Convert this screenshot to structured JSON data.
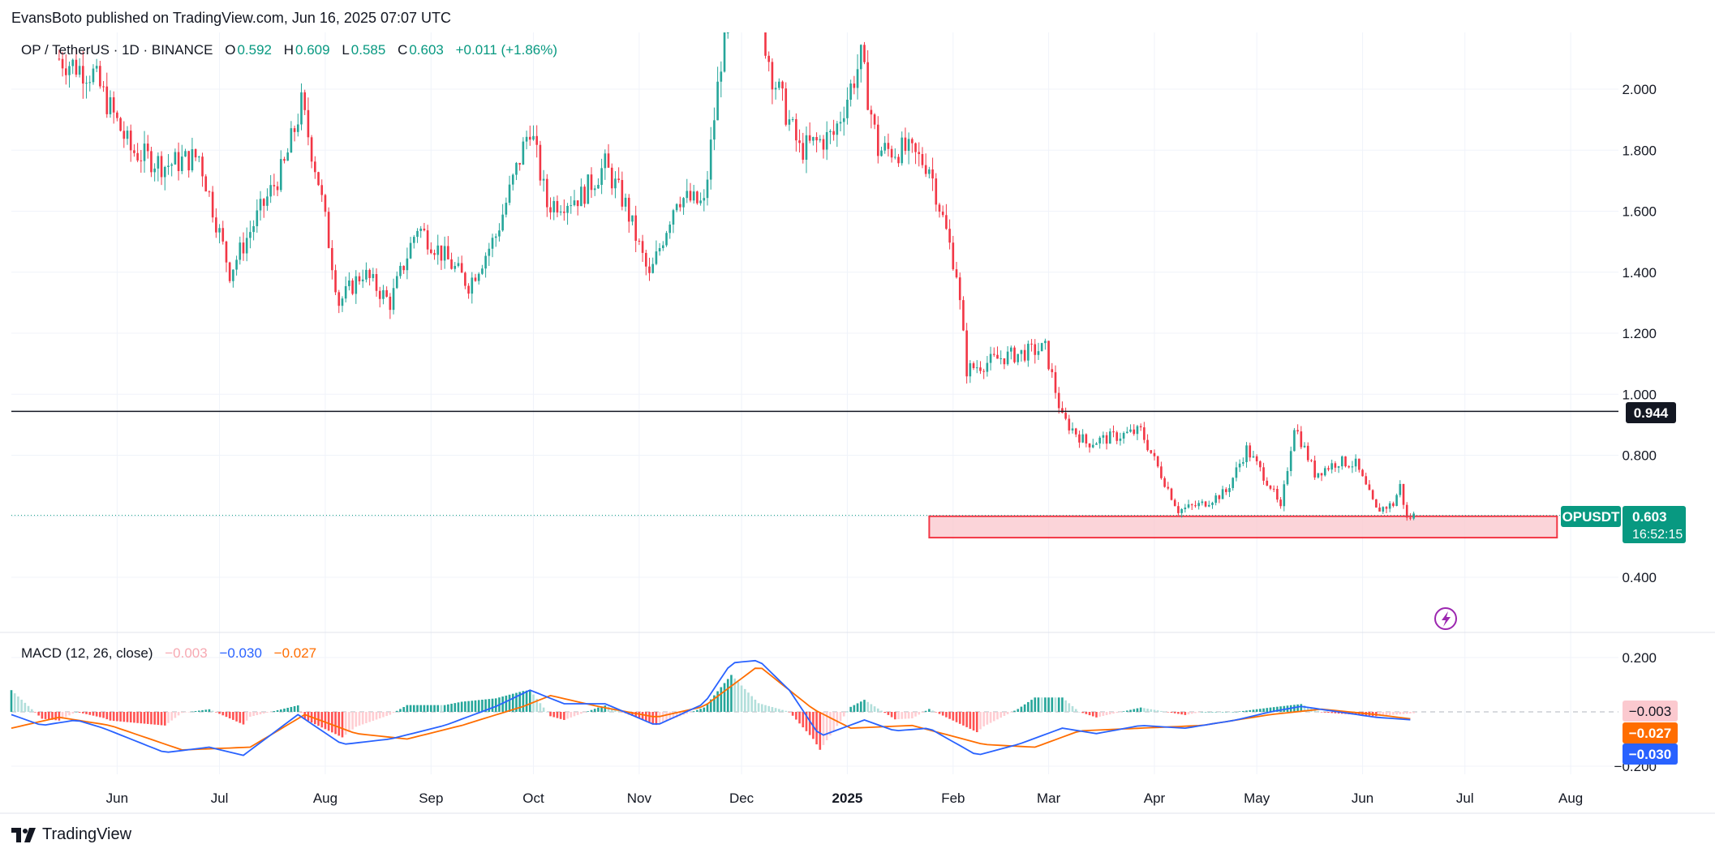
{
  "header": {
    "published": "EvansBoto published on TradingView.com, Jun 16, 2025 07:07 UTC"
  },
  "legend": {
    "symbol": "OP / TetherUS · 1D · BINANCE",
    "o_label": "O",
    "o_value": "0.592",
    "h_label": "H",
    "h_value": "0.609",
    "l_label": "L",
    "l_value": "0.585",
    "c_label": "C",
    "c_value": "0.603",
    "change": "+0.011 (+1.86%)"
  },
  "macd_legend": {
    "title": "MACD (12, 26, close)",
    "hist": "−0.003",
    "macd": "−0.030",
    "signal": "−0.027"
  },
  "price_labels": {
    "level": "0.944",
    "ticker": "OPUSDT",
    "last": "0.603",
    "countdown": "16:52:15"
  },
  "macd_labels": {
    "hist": "−0.003",
    "signal": "−0.027",
    "macd": "−0.030"
  },
  "footer": {
    "brand": "TradingView"
  },
  "colors": {
    "up": "#26a69a",
    "down": "#f23645",
    "macd": "#2962ff",
    "signal": "#ff6d00",
    "zone_fill": "#f9c6cc",
    "zone_border": "#f23645",
    "level_line": "#131722"
  },
  "chart_data": [
    {
      "type": "candlestick",
      "symbol": "OPUSDT",
      "interval": "1D",
      "x_range": [
        "2024-05-01",
        "2025-08-15"
      ],
      "y_range": [
        0.3,
        2.2
      ],
      "y_ticks": [
        "2.000",
        "1.800",
        "1.600",
        "1.400",
        "1.200",
        "1.000",
        "0.800",
        "0.400"
      ],
      "x_ticks": [
        "Jun",
        "Jul",
        "Aug",
        "Sep",
        "Oct",
        "Nov",
        "Dec",
        "2025",
        "Feb",
        "Mar",
        "Apr",
        "May",
        "Jun",
        "Jul",
        "Aug"
      ],
      "approx_close_path": [
        {
          "date": "2024-05-15",
          "close": 2.1
        },
        {
          "date": "2024-05-25",
          "close": 2.05
        },
        {
          "date": "2024-06-05",
          "close": 1.8
        },
        {
          "date": "2024-06-15",
          "close": 1.75
        },
        {
          "date": "2024-06-25",
          "close": 1.78
        },
        {
          "date": "2024-07-04",
          "close": 1.4
        },
        {
          "date": "2024-07-12",
          "close": 1.58
        },
        {
          "date": "2024-07-20",
          "close": 1.75
        },
        {
          "date": "2024-07-25",
          "close": 1.95
        },
        {
          "date": "2024-07-30",
          "close": 1.7
        },
        {
          "date": "2024-08-05",
          "close": 1.3
        },
        {
          "date": "2024-08-12",
          "close": 1.4
        },
        {
          "date": "2024-08-20",
          "close": 1.3
        },
        {
          "date": "2024-08-28",
          "close": 1.55
        },
        {
          "date": "2024-09-05",
          "close": 1.45
        },
        {
          "date": "2024-09-12",
          "close": 1.36
        },
        {
          "date": "2024-09-20",
          "close": 1.52
        },
        {
          "date": "2024-09-30",
          "close": 1.88
        },
        {
          "date": "2024-10-05",
          "close": 1.62
        },
        {
          "date": "2024-10-15",
          "close": 1.65
        },
        {
          "date": "2024-10-22",
          "close": 1.75
        },
        {
          "date": "2024-10-28",
          "close": 1.62
        },
        {
          "date": "2024-11-04",
          "close": 1.38
        },
        {
          "date": "2024-11-12",
          "close": 1.65
        },
        {
          "date": "2024-11-20",
          "close": 1.62
        },
        {
          "date": "2024-11-25",
          "close": 2.1
        },
        {
          "date": "2024-12-02",
          "close": 2.45
        },
        {
          "date": "2024-12-10",
          "close": 2.05
        },
        {
          "date": "2024-12-18",
          "close": 1.8
        },
        {
          "date": "2024-12-28",
          "close": 1.85
        },
        {
          "date": "2025-01-05",
          "close": 2.1
        },
        {
          "date": "2025-01-10",
          "close": 1.8
        },
        {
          "date": "2025-01-18",
          "close": 1.8
        },
        {
          "date": "2025-01-25",
          "close": 1.75
        },
        {
          "date": "2025-02-02",
          "close": 1.4
        },
        {
          "date": "2025-02-05",
          "close": 1.08
        },
        {
          "date": "2025-02-15",
          "close": 1.12
        },
        {
          "date": "2025-02-28",
          "close": 1.15
        },
        {
          "date": "2025-03-05",
          "close": 0.92
        },
        {
          "date": "2025-03-12",
          "close": 0.84
        },
        {
          "date": "2025-03-20",
          "close": 0.86
        },
        {
          "date": "2025-03-28",
          "close": 0.88
        },
        {
          "date": "2025-04-02",
          "close": 0.76
        },
        {
          "date": "2025-04-08",
          "close": 0.62
        },
        {
          "date": "2025-04-15",
          "close": 0.64
        },
        {
          "date": "2025-04-22",
          "close": 0.68
        },
        {
          "date": "2025-04-28",
          "close": 0.82
        },
        {
          "date": "2025-05-05",
          "close": 0.7
        },
        {
          "date": "2025-05-08",
          "close": 0.62
        },
        {
          "date": "2025-05-12",
          "close": 0.9
        },
        {
          "date": "2025-05-18",
          "close": 0.74
        },
        {
          "date": "2025-05-25",
          "close": 0.78
        },
        {
          "date": "2025-05-30",
          "close": 0.77
        },
        {
          "date": "2025-06-05",
          "close": 0.62
        },
        {
          "date": "2025-06-10",
          "close": 0.64
        },
        {
          "date": "2025-06-12",
          "close": 0.7
        },
        {
          "date": "2025-06-14",
          "close": 0.59
        },
        {
          "date": "2025-06-16",
          "close": 0.603
        }
      ],
      "annotations": {
        "horizontal_level": 0.944,
        "support_zone": {
          "from": "2025-01-25",
          "to": "2025-07-28",
          "low": 0.53,
          "high": 0.6
        },
        "last_price": 0.603
      },
      "grid": true
    },
    {
      "type": "line",
      "title": "MACD (12, 26, close)",
      "y_range": [
        -0.23,
        0.23
      ],
      "y_ticks": [
        "0.200",
        "−0.200"
      ],
      "series": [
        {
          "name": "MACD",
          "points": [
            {
              "date": "2024-05-01",
              "value": -0.01
            },
            {
              "date": "2024-05-10",
              "value": -0.05
            },
            {
              "date": "2024-05-20",
              "value": -0.03
            },
            {
              "date": "2024-05-28",
              "value": -0.06
            },
            {
              "date": "2024-06-15",
              "value": -0.15
            },
            {
              "date": "2024-06-28",
              "value": -0.13
            },
            {
              "date": "2024-07-08",
              "value": -0.16
            },
            {
              "date": "2024-07-24",
              "value": -0.01
            },
            {
              "date": "2024-08-06",
              "value": -0.12
            },
            {
              "date": "2024-08-20",
              "value": -0.1
            },
            {
              "date": "2024-09-05",
              "value": -0.05
            },
            {
              "date": "2024-09-20",
              "value": 0.02
            },
            {
              "date": "2024-09-30",
              "value": 0.08
            },
            {
              "date": "2024-10-10",
              "value": 0.03
            },
            {
              "date": "2024-10-22",
              "value": 0.03
            },
            {
              "date": "2024-11-06",
              "value": -0.05
            },
            {
              "date": "2024-11-20",
              "value": 0.03
            },
            {
              "date": "2024-11-28",
              "value": 0.18
            },
            {
              "date": "2024-12-06",
              "value": 0.19
            },
            {
              "date": "2024-12-15",
              "value": 0.08
            },
            {
              "date": "2024-12-24",
              "value": -0.09
            },
            {
              "date": "2025-01-06",
              "value": -0.03
            },
            {
              "date": "2025-01-15",
              "value": -0.07
            },
            {
              "date": "2025-01-25",
              "value": -0.06
            },
            {
              "date": "2025-02-08",
              "value": -0.16
            },
            {
              "date": "2025-02-20",
              "value": -0.12
            },
            {
              "date": "2025-03-05",
              "value": -0.06
            },
            {
              "date": "2025-03-15",
              "value": -0.08
            },
            {
              "date": "2025-03-28",
              "value": -0.05
            },
            {
              "date": "2025-04-10",
              "value": -0.06
            },
            {
              "date": "2025-04-25",
              "value": -0.03
            },
            {
              "date": "2025-05-05",
              "value": 0.0
            },
            {
              "date": "2025-05-14",
              "value": 0.02
            },
            {
              "date": "2025-05-25",
              "value": 0.0
            },
            {
              "date": "2025-06-05",
              "value": -0.02
            },
            {
              "date": "2025-06-16",
              "value": -0.03
            }
          ]
        },
        {
          "name": "Signal",
          "points": [
            {
              "date": "2024-05-01",
              "value": -0.06
            },
            {
              "date": "2024-05-15",
              "value": -0.02
            },
            {
              "date": "2024-05-30",
              "value": -0.05
            },
            {
              "date": "2024-06-20",
              "value": -0.14
            },
            {
              "date": "2024-07-10",
              "value": -0.13
            },
            {
              "date": "2024-07-26",
              "value": -0.01
            },
            {
              "date": "2024-08-10",
              "value": -0.08
            },
            {
              "date": "2024-08-25",
              "value": -0.1
            },
            {
              "date": "2024-09-10",
              "value": -0.05
            },
            {
              "date": "2024-09-28",
              "value": 0.02
            },
            {
              "date": "2024-10-06",
              "value": 0.06
            },
            {
              "date": "2024-10-20",
              "value": 0.02
            },
            {
              "date": "2024-11-06",
              "value": -0.02
            },
            {
              "date": "2024-11-20",
              "value": 0.02
            },
            {
              "date": "2024-12-06",
              "value": 0.17
            },
            {
              "date": "2024-12-22",
              "value": 0.01
            },
            {
              "date": "2025-01-02",
              "value": -0.06
            },
            {
              "date": "2025-01-20",
              "value": -0.05
            },
            {
              "date": "2025-02-10",
              "value": -0.12
            },
            {
              "date": "2025-02-25",
              "value": -0.13
            },
            {
              "date": "2025-03-10",
              "value": -0.07
            },
            {
              "date": "2025-03-28",
              "value": -0.06
            },
            {
              "date": "2025-04-15",
              "value": -0.05
            },
            {
              "date": "2025-05-05",
              "value": -0.01
            },
            {
              "date": "2025-05-20",
              "value": 0.01
            },
            {
              "date": "2025-06-05",
              "value": -0.01
            },
            {
              "date": "2025-06-16",
              "value": -0.027
            }
          ]
        }
      ]
    }
  ]
}
